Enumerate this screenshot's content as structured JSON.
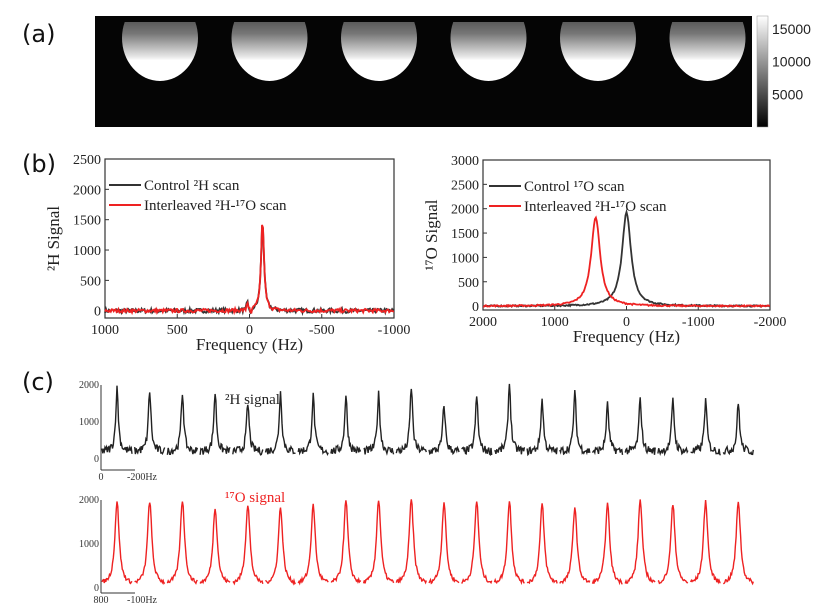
{
  "panels": {
    "a": "(a)",
    "b": "(b)",
    "c": "(c)"
  },
  "colors": {
    "black_series": "#333333",
    "red_series": "#ee2222"
  },
  "chart_data": [
    {
      "id": "a",
      "type": "heatmap",
      "description_label": "MRI images",
      "image_count": 6,
      "colorbar": {
        "ticks": [
          15000,
          10000,
          5000
        ],
        "tick_labels": [
          "15000",
          "10000",
          "5000"
        ],
        "range": [
          0,
          17000
        ]
      }
    },
    {
      "id": "b-left",
      "type": "line",
      "xlabel": "Frequency (Hz)",
      "ylabel": "²H Signal",
      "xlim": [
        1000,
        -1000
      ],
      "ylim": [
        -120,
        2500
      ],
      "xticks": [
        1000,
        500,
        0,
        -500,
        -1000
      ],
      "xtick_labels": [
        "1000",
        "500",
        "0",
        "-500",
        "-1000"
      ],
      "yticks": [
        0,
        500,
        1000,
        1500,
        2000,
        2500
      ],
      "ytick_labels": [
        "0",
        "500",
        "1000",
        "1500",
        "2000",
        "2500"
      ],
      "legend_position": "top-left",
      "series": [
        {
          "name": "Control ²H scan",
          "color": "#333333",
          "peak_center": -90,
          "peak_height": 1480,
          "peak_halfwidth": 12,
          "noise": 35
        },
        {
          "name": "Interleaved ²H-¹⁷O scan",
          "color": "#ee2222",
          "peak_center": -90,
          "peak_height": 1500,
          "peak_halfwidth": 12,
          "noise": 30
        }
      ]
    },
    {
      "id": "b-right",
      "type": "line",
      "xlabel": "Frequency (Hz)",
      "ylabel": "¹⁷O Signal",
      "xlim": [
        2000,
        -2000
      ],
      "ylim": [
        -80,
        3000
      ],
      "xticks": [
        2000,
        1000,
        0,
        -1000,
        -2000
      ],
      "xtick_labels": [
        "2000",
        "1000",
        "0",
        "-1000",
        "-2000"
      ],
      "yticks": [
        0,
        500,
        1000,
        1500,
        2000,
        2500,
        3000
      ],
      "ytick_labels": [
        "0",
        "500",
        "1000",
        "1500",
        "2000",
        "2500",
        "3000"
      ],
      "legend_position": "top-left",
      "series": [
        {
          "name": "Control ¹⁷O scan",
          "color": "#333333",
          "peak_center": 0,
          "peak_height": 1920,
          "peak_halfwidth": 75,
          "noise": 15
        },
        {
          "name": "Interleaved ²H-¹⁷O scan",
          "color": "#ee2222",
          "peak_center": 430,
          "peak_height": 1830,
          "peak_halfwidth": 75,
          "noise": 15
        }
      ]
    },
    {
      "id": "c-top",
      "type": "line",
      "title": "²H signal",
      "ylim": [
        0,
        2000
      ],
      "yticks": [
        0,
        1000,
        2000
      ],
      "ytick_labels": [
        "0",
        "1000",
        "2000"
      ],
      "x_scale_labels": [
        "0",
        "-200Hz"
      ],
      "color": "#222222",
      "segment_peaks": [
        1700,
        1650,
        1600,
        1600,
        1300,
        1600,
        1500,
        1500,
        1550,
        1750,
        1250,
        1480,
        1850,
        1400,
        1580,
        1270,
        1420,
        1380,
        1380,
        1310
      ]
    },
    {
      "id": "c-bottom",
      "type": "line",
      "title": "¹⁷O signal",
      "ylim": [
        0,
        2000
      ],
      "yticks": [
        0,
        1000,
        2000
      ],
      "ytick_labels": [
        "0",
        "1000",
        "2000"
      ],
      "x_scale_labels": [
        "800",
        "-100Hz"
      ],
      "color": "#ee2222",
      "segment_peaks": [
        1880,
        1900,
        1920,
        1750,
        1820,
        1760,
        1800,
        1900,
        1930,
        1930,
        1870,
        1900,
        1900,
        1820,
        1760,
        1830,
        1930,
        1830,
        1900,
        1900
      ]
    }
  ]
}
